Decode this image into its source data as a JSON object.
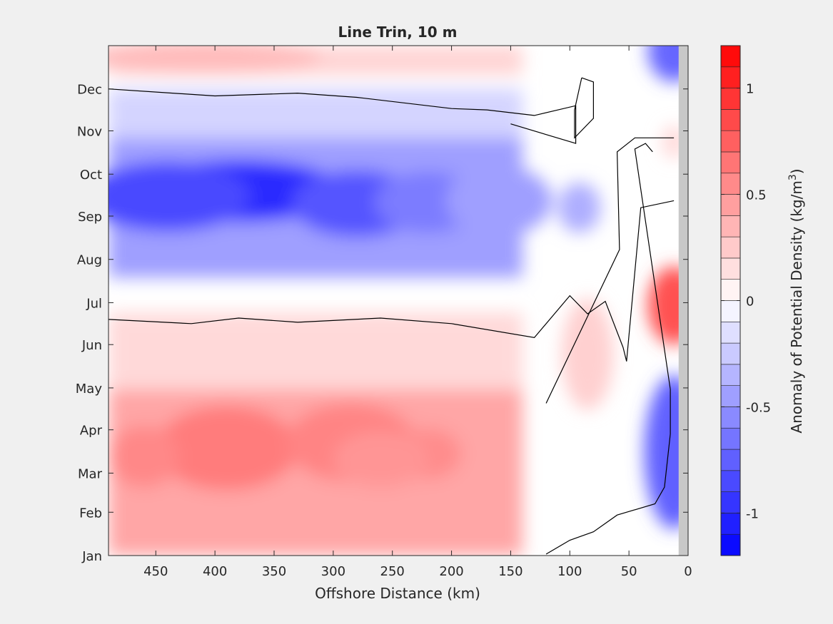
{
  "chart_data": {
    "type": "heatmap",
    "subtype": "filled-contour",
    "title": "Line Trin, 10 m",
    "xlabel": "Offshore Distance (km)",
    "ylabel": "",
    "colorbar_label_main": "Anomaly of Potential Density (kg/m",
    "colorbar_label_sup": "3",
    "colorbar_label_close": ")",
    "xlim": [
      490,
      0
    ],
    "x_reversed": true,
    "x_ticks": [
      450,
      400,
      350,
      300,
      250,
      200,
      150,
      100,
      50,
      0
    ],
    "y_ticks": [
      "Jan",
      "Feb",
      "Mar",
      "Apr",
      "May",
      "Jun",
      "Jul",
      "Aug",
      "Sep",
      "Oct",
      "Nov",
      "Dec"
    ],
    "y_tick_days": [
      1,
      32,
      60,
      91,
      121,
      152,
      182,
      213,
      244,
      274,
      305,
      335
    ],
    "ylim_days": [
      1,
      366
    ],
    "clim": [
      -1.2,
      1.2
    ],
    "colorbar_ticks": [
      -1,
      -0.5,
      0,
      0.5,
      1
    ],
    "colorbar_tick_labels": [
      "-1",
      "-0.5",
      "0",
      "0.5",
      "1"
    ],
    "contour_interval": 0.1,
    "colormap": "blue-white-red",
    "colors": {
      "negative": "#0000ff",
      "zero": "#ffffff",
      "positive": "#ff0000",
      "mask": "#c8c8c8",
      "zero_contour": "#000000"
    },
    "zero_contour_drawn": true,
    "land_mask_x": [
      0,
      8
    ],
    "grid": false,
    "features": [
      {
        "label": "spring positive anomaly (offshore)",
        "x": 390,
        "day": 75,
        "value": 0.6
      },
      {
        "label": "spring positive anomaly",
        "x": 285,
        "day": 80,
        "value": 0.58
      },
      {
        "label": "spring positive anomaly",
        "x": 460,
        "day": 72,
        "value": 0.55
      },
      {
        "label": "spring positive anomaly",
        "x": 220,
        "day": 73,
        "value": 0.52
      },
      {
        "label": "late-winter positive anomaly",
        "x": 440,
        "day": 120,
        "value": 0.35
      },
      {
        "label": "summer-fall negative anomaly core",
        "x": 380,
        "day": 262,
        "value": -1.0
      },
      {
        "label": "summer-fall negative anomaly",
        "x": 280,
        "day": 253,
        "value": -0.78
      },
      {
        "label": "summer-fall negative anomaly",
        "x": 220,
        "day": 254,
        "value": -0.62
      },
      {
        "label": "summer-fall negative anomaly",
        "x": 92,
        "day": 250,
        "value": -0.35
      },
      {
        "label": "winter positive anomaly",
        "x": 410,
        "day": 355,
        "value": 0.32
      },
      {
        "label": "nearshore summer positive anomaly",
        "x": 10,
        "day": 180,
        "value": 0.8
      },
      {
        "label": "nearshore spring negative anomaly",
        "x": 12,
        "day": 75,
        "value": -0.75
      },
      {
        "label": "nearshore winter negative anomaly",
        "x": 12,
        "day": 360,
        "value": -0.7
      },
      {
        "label": "nearshore fall positive anomaly",
        "x": 12,
        "day": 297,
        "value": 0.15
      },
      {
        "label": "coastal spring positive anomaly",
        "x": 85,
        "day": 145,
        "value": 0.22
      }
    ]
  }
}
